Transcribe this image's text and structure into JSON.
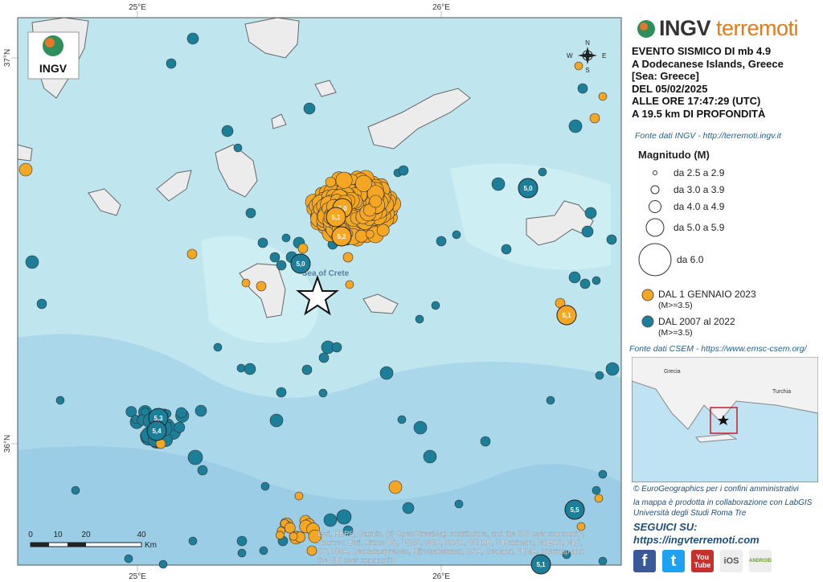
{
  "map": {
    "top_ticks": [
      "25°E",
      "26°E"
    ],
    "bottom_ticks": [
      "25°E",
      "26°E"
    ],
    "left_ticks": [
      "37°N",
      "36°N"
    ],
    "place_label": "Sea of Crete",
    "compass": {
      "n": "N",
      "s": "S",
      "w": "W",
      "e": "E"
    },
    "scale": {
      "ticks": [
        "0",
        "10",
        "20",
        "40"
      ],
      "unit": "Km"
    },
    "attribution": [
      "Esri, HERE, Garmin, (c) OpenStreetMap contributors, and the GIS user community,",
      "Sources: Esri, Airbus DS, USGS, NGA, NASA, CGIAR, N Robinson, NCEAS, NLS,",
      "OS, NMA, Geodatastyrelsen, Rijkswaterstaat, GSA, Geoland, FEMA, Intermap and",
      "the GIS user community"
    ],
    "quake_labels": [
      "5,0",
      "5,1",
      "5,2",
      "5,0",
      "5,0",
      "5,3",
      "5,4",
      "5,1",
      "5,5",
      "5,1"
    ],
    "logo": "INGV"
  },
  "header": {
    "brand_a": "INGV",
    "brand_b": "terremoti"
  },
  "event": [
    "EVENTO SISMICO DI mb 4.9",
    "A Dodecanese Islands, Greece",
    "[Sea: Greece]",
    "DEL 05/02/2025",
    "ALLE ORE 17:47:29 (UTC)",
    "A 19.5 km DI PROFONDITÀ"
  ],
  "source_ingv": "Fonte dati INGV - http://terremoti.ingv.it",
  "legend": {
    "title": "Magnitudo (M)",
    "sizes": [
      "da 2.5 a 2.9",
      "da 3.0 a 3.9",
      "da 4.0 a 4.9",
      "da 5.0 a 5.9",
      "da 6.0"
    ],
    "periods": [
      {
        "label": "DAL 1 GENNAIO 2023",
        "note": "(M>=3.5)"
      },
      {
        "label": "DAL 2007 al 2022",
        "note": "(M>=3.5)"
      }
    ]
  },
  "source_csem": "Fonte dati CSEM - https://www.emsc-csem.org/",
  "inset": {
    "labels": [
      "Grecia",
      "Turchia"
    ]
  },
  "credits": [
    "© EuroGeographics per i confini amministrativi",
    "la mappa è prodotta in collaborazione con LabGIS",
    "Università degli Studi Roma Tre"
  ],
  "social": {
    "title": "SEGUICI SU:",
    "url": "https://ingvterremoti.com",
    "icons": [
      "f",
      "t",
      "You Tube",
      "iOS",
      "ANDROID"
    ]
  }
}
